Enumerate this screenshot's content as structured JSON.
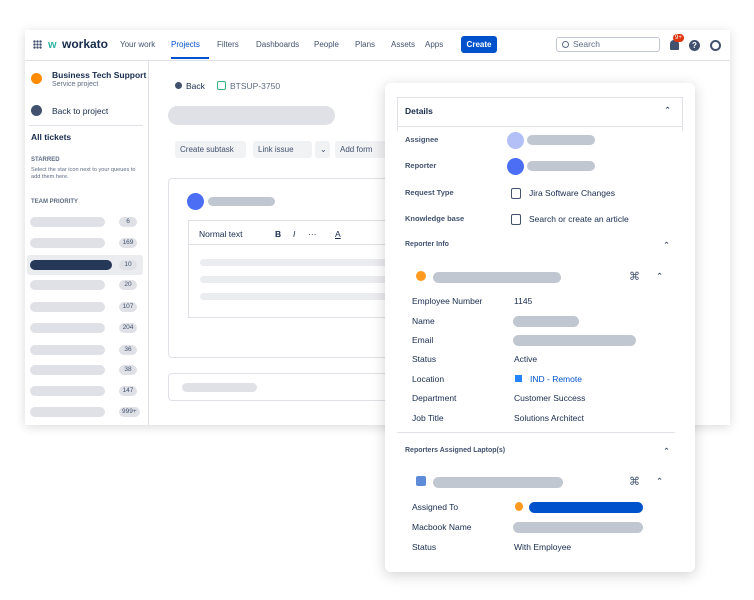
{
  "nav": {
    "logo": "workato",
    "items": [
      "Your work",
      "Projects",
      "Filters",
      "Dashboards",
      "People",
      "Plans",
      "Assets",
      "Apps"
    ],
    "create": "Create",
    "search": "Search",
    "badge": "9+"
  },
  "sidebar": {
    "project": "Business Tech Support",
    "project_type": "Service project",
    "back": "Back to project",
    "all_tickets": "All tickets",
    "starred": "STARRED",
    "starred_hint": "Select the star icon next to your queues to add them here.",
    "team_priority": "TEAM PRIORITY",
    "queue_counts": [
      "6",
      "169",
      "10",
      "20",
      "107",
      "204",
      "36",
      "38",
      "147",
      "999+"
    ]
  },
  "issue": {
    "back": "Back",
    "key": "BTSUP-3750",
    "actions": [
      "Create subtask",
      "Link issue",
      "Add form"
    ],
    "toolbar": {
      "style": "Normal text",
      "bold": "B",
      "italic": "I",
      "more": "···",
      "color": "A"
    }
  },
  "details": {
    "title": "Details",
    "rows": [
      {
        "label": "Assignee"
      },
      {
        "label": "Reporter"
      },
      {
        "label": "Request Type",
        "value": "Jira Software Changes"
      },
      {
        "label": "Knowledge base",
        "value": "Search or create an article"
      }
    ],
    "reporter_info": {
      "title": "Reporter Info",
      "fields": [
        {
          "label": "Employee Number",
          "value": "1145"
        },
        {
          "label": "Name"
        },
        {
          "label": "Email"
        },
        {
          "label": "Status",
          "value": "Active"
        },
        {
          "label": "Location",
          "value": "IND - Remote"
        },
        {
          "label": "Department",
          "value": "Customer Success"
        },
        {
          "label": "Job Title",
          "value": "Solutions Architect"
        }
      ]
    },
    "laptops": {
      "title": "Reporters Assigned Laptop(s)",
      "fields": [
        {
          "label": "Assigned To"
        },
        {
          "label": "Macbook Name"
        },
        {
          "label": "Status",
          "value": "With Employee"
        }
      ]
    }
  }
}
